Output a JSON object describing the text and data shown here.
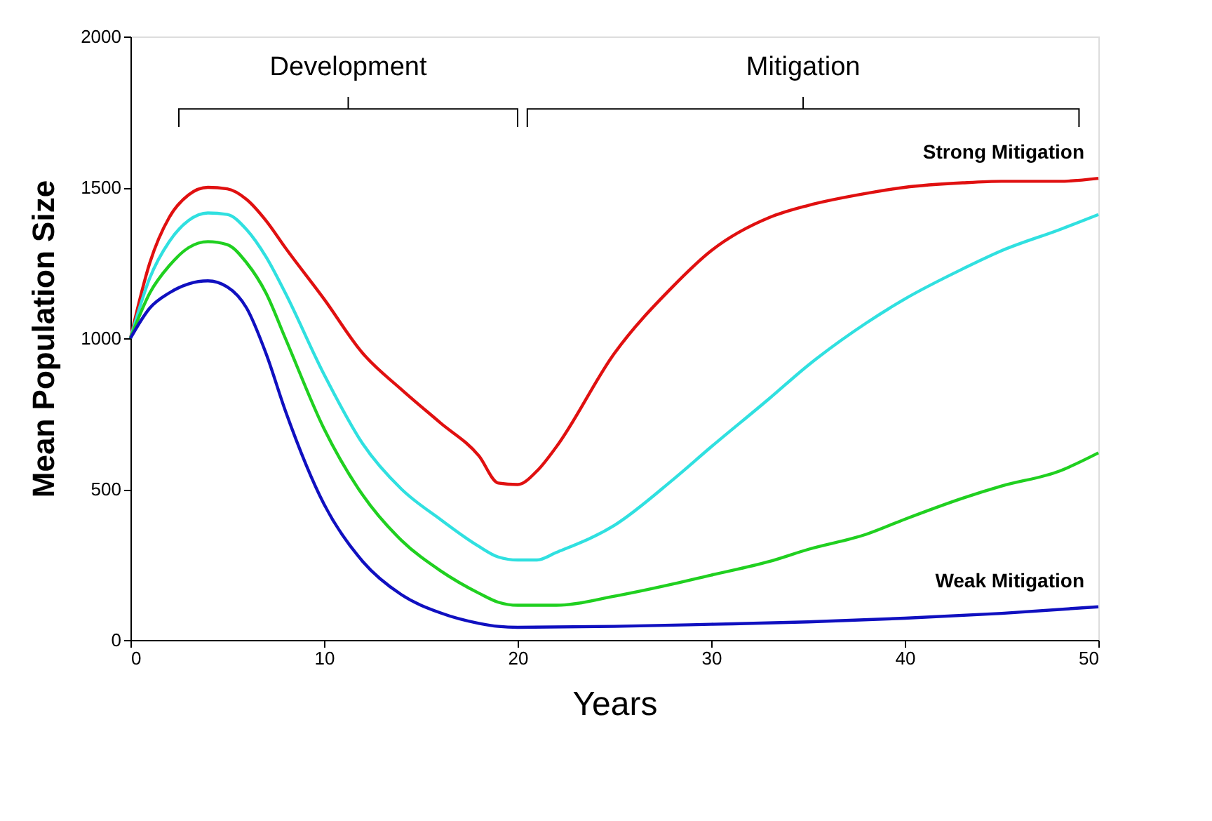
{
  "chart_data": {
    "type": "line",
    "xlabel": "Years",
    "ylabel": "Mean Population Size",
    "xlim": [
      0,
      50
    ],
    "ylim": [
      0,
      2000
    ],
    "xticks": [
      0,
      10,
      20,
      30,
      40,
      50
    ],
    "yticks": [
      0,
      500,
      1000,
      1500,
      2000
    ],
    "grid": false,
    "legend": false,
    "marker": "none",
    "line_style": "solid",
    "annotations": [
      "Development",
      "Mitigation"
    ],
    "series": [
      {
        "name": "Strong Mitigation",
        "color": "#e01010",
        "x": [
          0,
          1,
          2,
          3,
          4,
          5,
          6,
          7,
          8,
          10,
          12,
          14,
          16,
          18,
          19,
          20,
          21,
          22,
          25,
          28,
          30,
          33,
          35,
          38,
          40,
          43,
          45,
          48,
          50
        ],
        "values": [
          1000,
          1250,
          1400,
          1475,
          1500,
          1495,
          1460,
          1390,
          1300,
          1130,
          950,
          830,
          720,
          610,
          520,
          515,
          560,
          640,
          950,
          1170,
          1290,
          1400,
          1440,
          1480,
          1500,
          1515,
          1520,
          1520,
          1530
        ]
      },
      {
        "color": "#30e0e0",
        "x": [
          0,
          1,
          2,
          3,
          4,
          5,
          6,
          7,
          8,
          10,
          12,
          14,
          16,
          18,
          19,
          20,
          21,
          22,
          25,
          28,
          30,
          33,
          35,
          38,
          40,
          43,
          45,
          48,
          50
        ],
        "values": [
          1000,
          1200,
          1320,
          1390,
          1415,
          1410,
          1360,
          1270,
          1150,
          880,
          650,
          500,
          400,
          310,
          275,
          265,
          265,
          290,
          380,
          530,
          640,
          800,
          910,
          1050,
          1130,
          1230,
          1290,
          1360,
          1410
        ]
      },
      {
        "color": "#20d020",
        "x": [
          0,
          1,
          2,
          3,
          4,
          5,
          6,
          7,
          8,
          10,
          12,
          14,
          16,
          18,
          19,
          20,
          22,
          25,
          28,
          30,
          33,
          35,
          38,
          40,
          43,
          45,
          48,
          50
        ],
        "values": [
          1000,
          1150,
          1240,
          1300,
          1320,
          1310,
          1250,
          1150,
          1000,
          700,
          480,
          330,
          230,
          155,
          125,
          115,
          115,
          145,
          185,
          215,
          260,
          300,
          350,
          400,
          470,
          510,
          560,
          620
        ]
      },
      {
        "name": "Weak Mitigation",
        "color": "#1010c0",
        "x": [
          0,
          1,
          2,
          3,
          4,
          5,
          6,
          7,
          8,
          10,
          12,
          14,
          16,
          18,
          19,
          20,
          25,
          30,
          35,
          40,
          45,
          50
        ],
        "values": [
          1000,
          1100,
          1150,
          1180,
          1190,
          1170,
          1100,
          950,
          760,
          450,
          260,
          150,
          90,
          55,
          45,
          42,
          45,
          52,
          60,
          72,
          88,
          110
        ]
      }
    ]
  }
}
